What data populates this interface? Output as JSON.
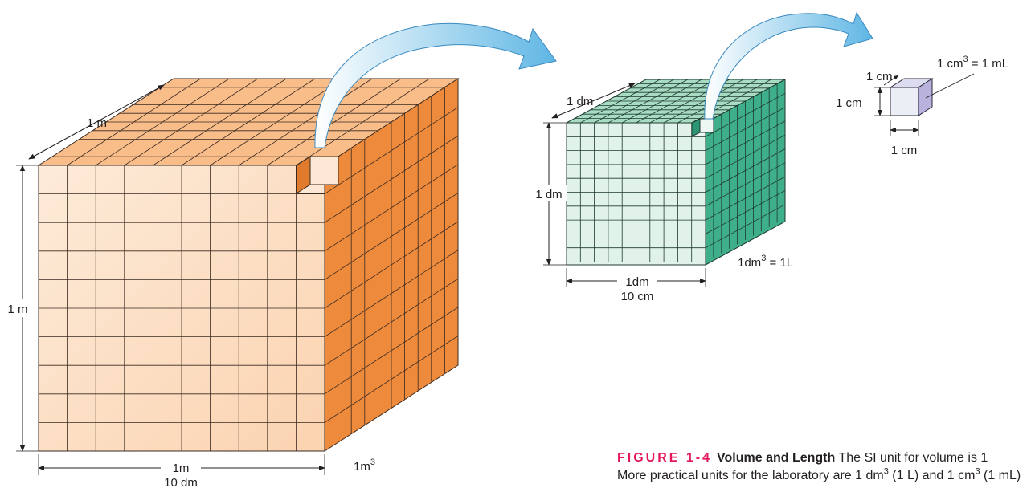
{
  "large_cube": {
    "depth_label": "1 m",
    "height_label": "1 m",
    "width_label": "1m",
    "width_sub_label": "10 dm",
    "volume_base": "1m",
    "volume_exp": "3"
  },
  "medium_cube": {
    "depth_label": "1 dm",
    "height_label": "1 dm",
    "width_label": "1dm",
    "width_sub_label": "10 cm",
    "volume_base": "1dm",
    "volume_exp": "3",
    "volume_rest": " = 1L"
  },
  "small_cube": {
    "depth_label": "1 cm",
    "height_label": "1 cm",
    "width_label": "1 cm",
    "volume_base": "1 cm",
    "volume_exp": "3",
    "volume_rest": " = 1 mL"
  },
  "caption": {
    "figure_number": "FIGURE 1-4",
    "title": "Volume and Length",
    "line1_text": "The SI unit for volume is 1",
    "line2_start": "More practical units for the laboratory are 1 dm",
    "line2_exp1": "3",
    "line2_mid": " (1 L) and 1 cm",
    "line2_exp2": "3",
    "line2_end": " (1 mL)"
  },
  "colors": {
    "large_front": "#fde3cc",
    "large_top": "#f8b37b",
    "large_side": "#ee8a3c",
    "medium_front": "#e0f2ea",
    "medium_top": "#a7dcc3",
    "medium_side": "#3fae8a",
    "small_front": "#eceef6",
    "small_side": "#b8b2dc",
    "arrow": "#7cc5ea",
    "caption_accent": "#e2185b"
  }
}
